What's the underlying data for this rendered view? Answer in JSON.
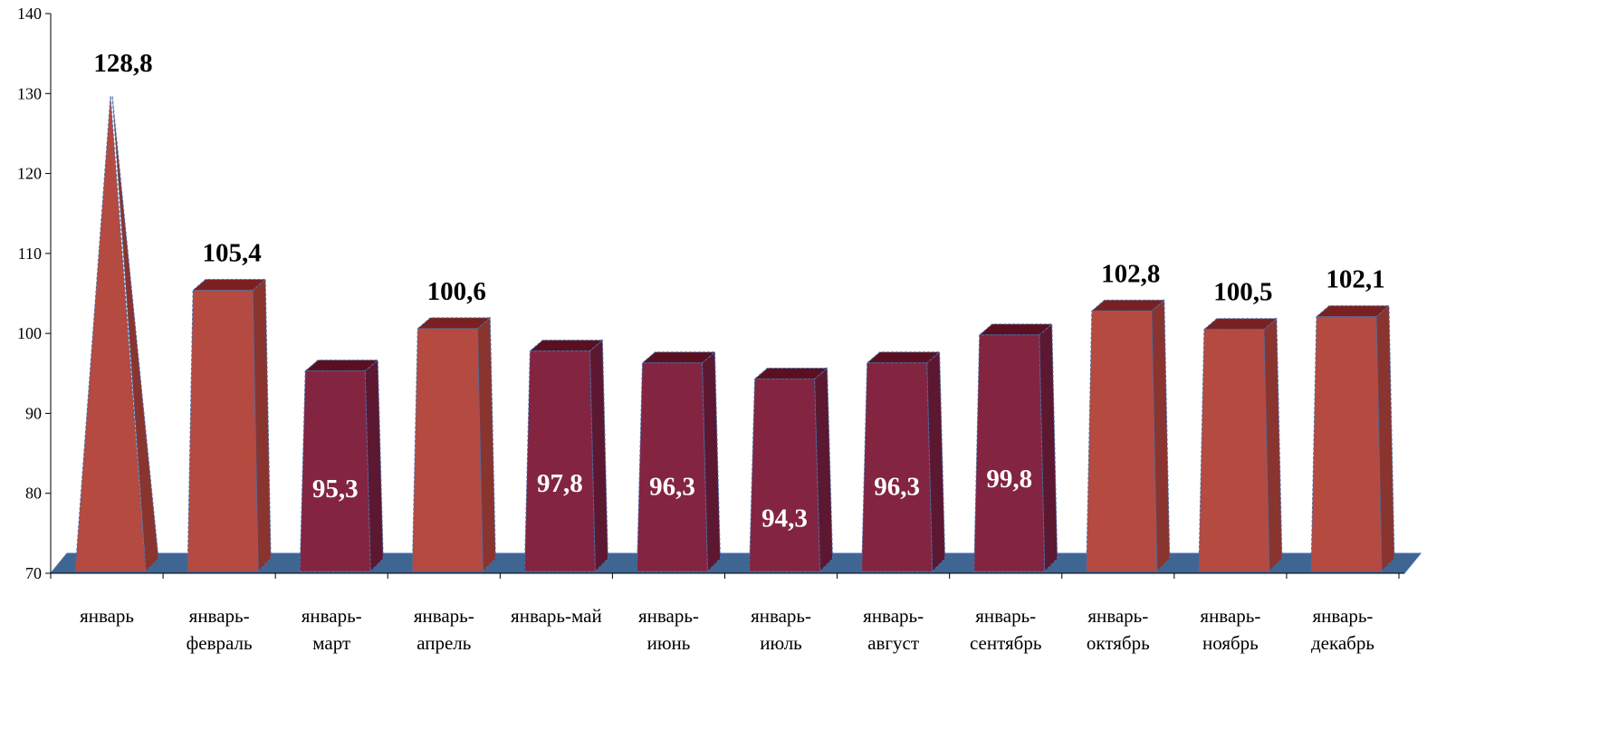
{
  "chart_data": {
    "type": "bar",
    "title": "",
    "xlabel": "",
    "ylabel": "",
    "ylim": [
      70,
      140
    ],
    "yticks": [
      70,
      80,
      90,
      100,
      110,
      120,
      130,
      140
    ],
    "categories": [
      [
        "январь"
      ],
      [
        "январь-",
        "февраль"
      ],
      [
        "январь-",
        "март"
      ],
      [
        "январь-",
        "апрель"
      ],
      [
        "январь-май"
      ],
      [
        "январь-",
        "июнь"
      ],
      [
        "январь-",
        "июль"
      ],
      [
        "январь-",
        "август"
      ],
      [
        "январь-",
        "сентябрь"
      ],
      [
        "январь-",
        "октябрь"
      ],
      [
        "январь-",
        "ноябрь"
      ],
      [
        "январь-",
        "декабрь"
      ]
    ],
    "values": [
      128.8,
      105.4,
      95.3,
      100.6,
      97.8,
      96.3,
      94.3,
      96.3,
      99.8,
      102.8,
      100.5,
      102.1
    ],
    "value_labels": [
      "128,8",
      "105,4",
      "95,3",
      "100,6",
      "97,8",
      "96,3",
      "94,3",
      "96,3",
      "99,8",
      "102,8",
      "100,5",
      "102,1"
    ],
    "grid": false,
    "legend": "none",
    "colors": {
      "above_100": "#b54a40",
      "above_100_side": "#8a3430",
      "above_100_top": "#7a2020",
      "below_100": "#832440",
      "below_100_side": "#5c1830",
      "below_100_top": "#5a1020",
      "floor": "#3f6593",
      "outline": "#4a6fa8"
    }
  }
}
